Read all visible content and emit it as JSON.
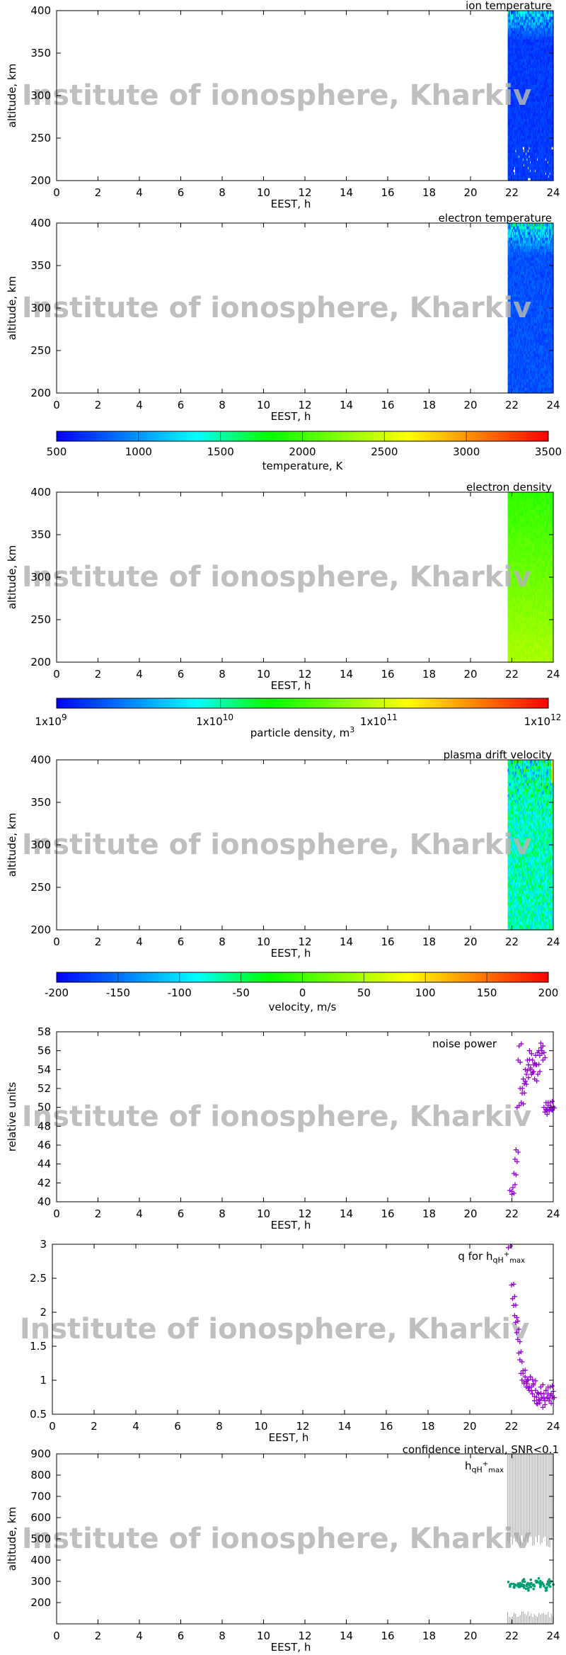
{
  "watermark": "Institute of ionosphere, Kharkiv",
  "colorbar_colors": [
    "#0000ff",
    "#0080ff",
    "#00ffff",
    "#00ff00",
    "#80ff00",
    "#ffff00",
    "#ff8000",
    "#ff0000"
  ],
  "chart_data": [
    {
      "id": "ion-temperature",
      "type": "heatmap",
      "title": "ion temperature",
      "xlabel": "EEST, h",
      "ylabel": "altitude, km",
      "xlim": [
        0,
        24
      ],
      "ylim": [
        200,
        400
      ],
      "xticks": [
        "0",
        "2",
        "4",
        "6",
        "8",
        "10",
        "12",
        "14",
        "16",
        "18",
        "20",
        "22",
        "24"
      ],
      "yticks": [
        "200",
        "250",
        "300",
        "350",
        "400"
      ],
      "data_x_range": [
        21.8,
        24
      ],
      "value_description": "low temperatures (~500-900 K) at most altitudes, higher values near 380-400 km",
      "grid": false
    },
    {
      "id": "electron-temperature",
      "type": "heatmap",
      "title": "electron temperature",
      "xlabel": "EEST, h",
      "ylabel": "altitude, km",
      "xlim": [
        0,
        24
      ],
      "ylim": [
        200,
        400
      ],
      "xticks": [
        "0",
        "2",
        "4",
        "6",
        "8",
        "10",
        "12",
        "14",
        "16",
        "18",
        "20",
        "22",
        "24"
      ],
      "yticks": [
        "200",
        "250",
        "300",
        "350",
        "400"
      ],
      "data_x_range": [
        21.8,
        24
      ],
      "grid": false
    },
    {
      "id": "temperature-colorbar",
      "type": "colorbar",
      "label": "temperature, K",
      "range": [
        500,
        3500
      ],
      "ticks": [
        "500",
        "1000",
        "1500",
        "2000",
        "2500",
        "3000",
        "3500"
      ]
    },
    {
      "id": "electron-density",
      "type": "heatmap",
      "title": "electron density",
      "xlabel": "EEST, h",
      "ylabel": "altitude, km",
      "xlim": [
        0,
        24
      ],
      "ylim": [
        200,
        400
      ],
      "xticks": [
        "0",
        "2",
        "4",
        "6",
        "8",
        "10",
        "12",
        "14",
        "16",
        "18",
        "20",
        "22",
        "24"
      ],
      "yticks": [
        "200",
        "250",
        "300",
        "350",
        "400"
      ],
      "data_x_range": [
        21.8,
        24
      ],
      "grid": false
    },
    {
      "id": "density-colorbar",
      "type": "colorbar",
      "label": "particle density, m",
      "label_superscript": "3",
      "scale": "log",
      "range": [
        1000000000.0,
        1000000000000.0
      ],
      "ticks": [
        {
          "base": "1x10",
          "exp": "9"
        },
        {
          "base": "1x10",
          "exp": "10"
        },
        {
          "base": "1x10",
          "exp": "11"
        },
        {
          "base": "1x10",
          "exp": "12"
        }
      ]
    },
    {
      "id": "plasma-drift-velocity",
      "type": "heatmap",
      "title": "plasma drift velocity",
      "xlabel": "EEST, h",
      "ylabel": "altitude, km",
      "xlim": [
        0,
        24
      ],
      "ylim": [
        200,
        400
      ],
      "xticks": [
        "0",
        "2",
        "4",
        "6",
        "8",
        "10",
        "12",
        "14",
        "16",
        "18",
        "20",
        "22",
        "24"
      ],
      "yticks": [
        "200",
        "250",
        "300",
        "350",
        "400"
      ],
      "data_x_range": [
        21.8,
        24
      ],
      "grid": false
    },
    {
      "id": "velocity-colorbar",
      "type": "colorbar",
      "label": "velocity, m/s",
      "range": [
        -200,
        200
      ],
      "ticks": [
        "-200",
        "-150",
        "-100",
        "-50",
        "0",
        "50",
        "100",
        "150",
        "200"
      ]
    },
    {
      "id": "noise-power",
      "type": "scatter",
      "title": "noise power",
      "xlabel": "EEST, h",
      "ylabel": "relative units",
      "xlim": [
        0,
        24
      ],
      "ylim": [
        40,
        58
      ],
      "xticks": [
        "0",
        "2",
        "4",
        "6",
        "8",
        "10",
        "12",
        "14",
        "16",
        "18",
        "20",
        "22",
        "24"
      ],
      "yticks": [
        "40",
        "42",
        "44",
        "46",
        "48",
        "50",
        "52",
        "54",
        "56",
        "58"
      ],
      "marker_color": "#9400d3",
      "x": [
        21.9,
        22.0,
        22.05,
        22.1,
        22.15,
        22.2,
        22.25,
        22.3,
        22.35,
        22.4,
        22.45,
        22.5,
        22.55,
        22.6,
        22.65,
        22.7,
        22.75,
        22.8,
        22.85,
        22.9,
        22.95,
        23.0,
        23.05,
        23.1,
        23.15,
        23.2,
        23.25,
        23.3,
        23.35,
        23.4,
        23.45,
        23.5,
        23.55,
        23.6,
        23.65,
        23.7,
        23.75,
        23.8,
        23.85,
        23.9,
        23.95
      ],
      "y": [
        41.2,
        40.8,
        41.5,
        43.0,
        44.5,
        45.5,
        50.0,
        55.0,
        56.5,
        52.0,
        50.5,
        51.5,
        53.0,
        52.5,
        54.0,
        53.5,
        55.0,
        54.5,
        56.0,
        54.0,
        53.5,
        55.0,
        54.5,
        53.0,
        55.5,
        54.5,
        53.5,
        56.0,
        55.5,
        56.8,
        56.0,
        55.0,
        50.0,
        49.5,
        50.5,
        49.8,
        50.2,
        49.6,
        50.5,
        50.0,
        49.7
      ],
      "grid": false
    },
    {
      "id": "q-for-hmax",
      "type": "scatter",
      "title": "q for h",
      "title_subscript": "qH",
      "title_superscript": "+",
      "title_subscript2": "max",
      "xlabel": "EEST, h",
      "ylabel": "",
      "xlim": [
        0,
        24
      ],
      "ylim": [
        0.5,
        3
      ],
      "xticks": [
        "0",
        "2",
        "4",
        "6",
        "8",
        "10",
        "12",
        "14",
        "16",
        "18",
        "20",
        "22",
        "24"
      ],
      "yticks": [
        "0.5",
        "1",
        "1.5",
        "2",
        "2.5",
        "3"
      ],
      "marker_color": "#9400d3",
      "x": [
        21.85,
        22.0,
        22.05,
        22.1,
        22.15,
        22.2,
        22.25,
        22.3,
        22.35,
        22.4,
        22.45,
        22.5,
        22.55,
        22.6,
        22.65,
        22.7,
        22.75,
        22.8,
        22.85,
        22.9,
        22.95,
        23.0,
        23.05,
        23.1,
        23.15,
        23.2,
        23.25,
        23.3,
        23.35,
        23.4,
        23.45,
        23.5,
        23.55,
        23.6,
        23.65,
        23.7,
        23.75,
        23.8,
        23.85,
        23.9,
        23.95
      ],
      "y": [
        2.95,
        2.4,
        2.2,
        2.1,
        1.95,
        1.85,
        1.7,
        1.6,
        1.4,
        1.3,
        1.1,
        1.0,
        1.1,
        0.95,
        1.05,
        0.9,
        0.95,
        1.0,
        0.85,
        1.05,
        0.9,
        0.8,
        0.95,
        0.7,
        0.85,
        0.75,
        0.65,
        0.8,
        0.7,
        0.9,
        0.75,
        0.6,
        0.8,
        0.7,
        0.85,
        0.75,
        0.8,
        0.7,
        0.9,
        0.8,
        0.75
      ],
      "grid": false
    },
    {
      "id": "hmax-confidence",
      "type": "scatter",
      "title": "confidence interval, SNR<0.1",
      "series_label": "h",
      "series_label_subscript": "qH",
      "series_label_superscript": "+",
      "series_label_subscript2": "max",
      "xlabel": "EEST, h",
      "ylabel": "altitude, km",
      "xlim": [
        0,
        24
      ],
      "ylim": [
        100,
        900
      ],
      "xticks": [
        "0",
        "2",
        "4",
        "6",
        "8",
        "10",
        "12",
        "14",
        "16",
        "18",
        "20",
        "22",
        "24"
      ],
      "yticks": [
        "200",
        "300",
        "400",
        "500",
        "600",
        "700",
        "800",
        "900"
      ],
      "confidence_color": "#a0a0a0",
      "marker_color": "#009e73",
      "confidence_x_range": [
        21.8,
        24
      ],
      "confidence_upper": 900,
      "confidence_lower_band": [
        460,
        520
      ],
      "bottom_band": [
        130,
        160
      ],
      "x": [
        21.9,
        22.0,
        22.1,
        22.2,
        22.3,
        22.4,
        22.5,
        22.6,
        22.7,
        22.8,
        22.9,
        23.0,
        23.1,
        23.2,
        23.3,
        23.4,
        23.5,
        23.6,
        23.7,
        23.8,
        23.9
      ],
      "y": [
        290,
        280,
        285,
        295,
        275,
        290,
        300,
        285,
        270,
        290,
        280,
        295,
        275,
        300,
        285,
        290,
        280,
        270,
        295,
        285,
        290
      ],
      "grid": false
    }
  ]
}
